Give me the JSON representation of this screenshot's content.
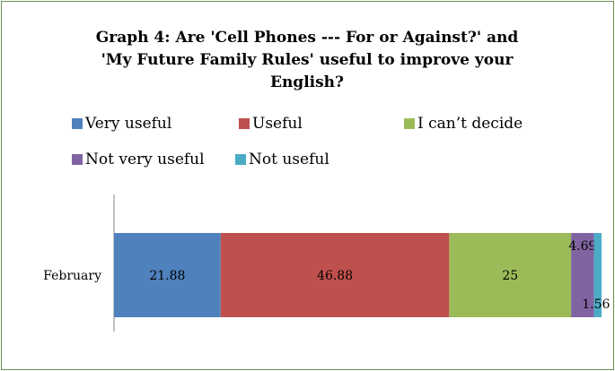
{
  "chart_data": {
    "type": "bar",
    "orientation": "horizontal",
    "stacked": true,
    "title": [
      "Graph 4: Are 'Cell Phones --- For or Against?' and",
      "'My Future Family Rules' useful to improve your",
      "English?"
    ],
    "categories": [
      "February"
    ],
    "series": [
      {
        "name": "Very useful",
        "values": [
          21.88
        ],
        "color": "#4f81bd",
        "label": "21.88"
      },
      {
        "name": "Useful",
        "values": [
          46.88
        ],
        "color": "#c0504d",
        "label": "46.88"
      },
      {
        "name": "I can’t decide",
        "values": [
          25
        ],
        "color": "#9bbb59",
        "label": "25"
      },
      {
        "name": "Not very useful",
        "values": [
          4.69
        ],
        "color": "#8064a2",
        "label": "4.69"
      },
      {
        "name": "Not useful",
        "values": [
          1.56
        ],
        "color": "#4bacc6",
        "label": "1.56"
      }
    ],
    "xlim": [
      0,
      100
    ],
    "legend_position": "top",
    "grid": false
  }
}
